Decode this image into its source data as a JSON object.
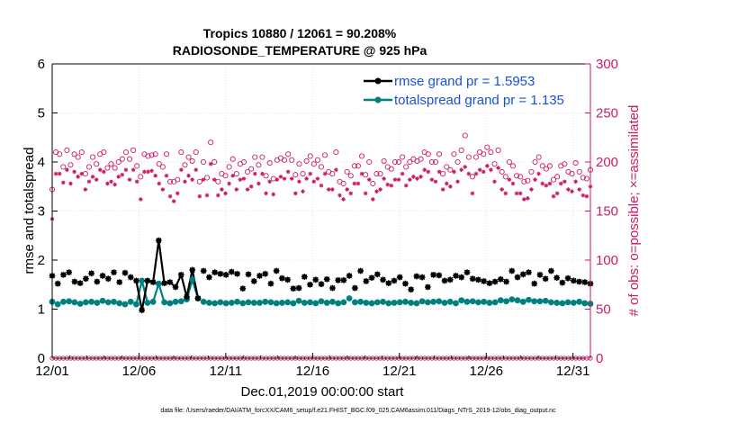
{
  "chart_data": {
    "type": "line",
    "title": "Tropics 10880 / 12061 = 90.208%",
    "subtitle": "RADIOSONDE_TEMPERATURE @ 925 hPa",
    "xlabel": "Dec.01,2019 00:00:00 start",
    "ylabel": "rmse and totalspread",
    "ylabel_right": "# of obs: o=possible; ×=assimilated",
    "footer": "data file: /Users/raeder/DAI/ATM_forcXX/CAM6_setup/f.e21.FHIST_BGC.f09_025.CAM6assim.011/Diags_NTrS_2019-12/obs_diag_output.nc",
    "xlim": [
      0,
      31
    ],
    "ylim": [
      0,
      6
    ],
    "ylim_right": [
      0,
      300
    ],
    "x_ticks": [
      0,
      5,
      10,
      15,
      20,
      25,
      30
    ],
    "x_tick_labels": [
      "12/01",
      "12/06",
      "12/11",
      "12/16",
      "12/21",
      "12/26",
      "12/31"
    ],
    "y_ticks": [
      0,
      1,
      2,
      3,
      4,
      5,
      6
    ],
    "y_ticks_right": [
      0,
      50,
      100,
      150,
      200,
      250,
      300
    ],
    "legend": [
      "rmse grand pr = 1.5953",
      "totalspread grand pr = 1.135"
    ],
    "series": [
      {
        "name": "rmse",
        "color": "#000000",
        "values": [
          1.68,
          1.52,
          1.7,
          1.75,
          1.56,
          1.53,
          1.62,
          1.73,
          1.56,
          1.68,
          1.62,
          1.75,
          1.55,
          1.74,
          1.65,
          1.58,
          0.98,
          1.58,
          1.55,
          2.4,
          1.53,
          1.55,
          1.45,
          1.7,
          1.25,
          1.8,
          1.22,
          1.78,
          1.65,
          1.75,
          1.72,
          1.7,
          1.76,
          1.72,
          1.42,
          1.71,
          1.57,
          1.68,
          1.72,
          1.52,
          1.78,
          1.63,
          1.6,
          1.42,
          1.43,
          1.66,
          1.5,
          1.6,
          1.51,
          1.61,
          1.43,
          1.59,
          1.59,
          1.68,
          1.43,
          1.78,
          1.57,
          1.64,
          1.71,
          1.6,
          1.53,
          1.58,
          1.65,
          1.52,
          1.4,
          1.67,
          1.65,
          1.45,
          1.7,
          1.69,
          1.58,
          1.6,
          1.68,
          1.65,
          1.75,
          1.62,
          1.6,
          1.57,
          1.53,
          1.56,
          1.61,
          1.56,
          1.78,
          1.65,
          1.71,
          1.75,
          1.52,
          1.7,
          1.62,
          1.78,
          1.64,
          1.54,
          1.63,
          1.58,
          1.56,
          1.55,
          1.52
        ]
      },
      {
        "name": "totalspread",
        "color": "#008080",
        "values": [
          1.15,
          1.1,
          1.15,
          1.16,
          1.14,
          1.11,
          1.14,
          1.15,
          1.13,
          1.17,
          1.14,
          1.15,
          1.12,
          1.1,
          1.15,
          1.1,
          1.58,
          1.13,
          1.15,
          1.52,
          1.14,
          1.12,
          1.15,
          1.16,
          1.2,
          1.6,
          1.22,
          1.15,
          1.13,
          1.12,
          1.14,
          1.12,
          1.13,
          1.15,
          1.12,
          1.14,
          1.13,
          1.13,
          1.15,
          1.14,
          1.12,
          1.13,
          1.14,
          1.12,
          1.17,
          1.13,
          1.14,
          1.12,
          1.16,
          1.13,
          1.15,
          1.12,
          1.14,
          1.22,
          1.14,
          1.15,
          1.13,
          1.12,
          1.14,
          1.15,
          1.12,
          1.13,
          1.14,
          1.15,
          1.13,
          1.12,
          1.16,
          1.14,
          1.15,
          1.16,
          1.13,
          1.15,
          1.12,
          1.18,
          1.15,
          1.16,
          1.14,
          1.15,
          1.13,
          1.14,
          1.18,
          1.16,
          1.2,
          1.18,
          1.15,
          1.19,
          1.16,
          1.16,
          1.17,
          1.14,
          1.13,
          1.12,
          1.14,
          1.13,
          1.15,
          1.12,
          1.11
        ]
      },
      {
        "name": "possible_obs",
        "color": "#cc1a66",
        "values": [
          172,
          210,
          208,
          195,
          212,
          197,
          208,
          205,
          210,
          188,
          195,
          205,
          198,
          208,
          210,
          194,
          198,
          194,
          200,
          203,
          210,
          203,
          212,
          196,
          185,
          208,
          206,
          207,
          208,
          198,
          195,
          208,
          180,
          180,
          182,
          210,
          197,
          205,
          201,
          210,
          180,
          200,
          184,
          220,
          200,
          180,
          188,
          186,
          195,
          203,
          188,
          198,
          200,
          190,
          193,
          205,
          197,
          205,
          186,
          199,
          183,
          202,
          204,
          202,
          208,
          202,
          187,
          198,
          188,
          201,
          206,
          198,
          202,
          195,
          207,
          190,
          188,
          210,
          180,
          178,
          190,
          186,
          196,
          196,
          206,
          187,
          200,
          178,
          188,
          188,
          201,
          195,
          193,
          200,
          200,
          205,
          195,
          200,
          203,
          201,
          203,
          210,
          208,
          200,
          200,
          208,
          188,
          195,
          192,
          208,
          200,
          212,
          227,
          205,
          185,
          205,
          210,
          208,
          215,
          210,
          198,
          212,
          190,
          185,
          200,
          196,
          186,
          185,
          180,
          181,
          190,
          200,
          205,
          196,
          193,
          196,
          182,
          185,
          196,
          198,
          190,
          188,
          199,
          190,
          184,
          183,
          192
        ]
      },
      {
        "name": "assimilated_obs",
        "color": "#cc1a66",
        "values": [
          142,
          188,
          188,
          179,
          192,
          178,
          190,
          185,
          188,
          172,
          180,
          185,
          182,
          192,
          190,
          178,
          180,
          177,
          185,
          187,
          192,
          182,
          192,
          180,
          162,
          190,
          190,
          191,
          186,
          178,
          172,
          186,
          165,
          160,
          168,
          192,
          180,
          186,
          182,
          192,
          165,
          182,
          166,
          198,
          182,
          166,
          172,
          168,
          178,
          186,
          172,
          182,
          183,
          172,
          175,
          188,
          178,
          188,
          168,
          180,
          167,
          182,
          185,
          183,
          190,
          183,
          168,
          180,
          170,
          183,
          188,
          180,
          183,
          176,
          188,
          172,
          172,
          192,
          166,
          162,
          172,
          168,
          178,
          178,
          188,
          168,
          182,
          162,
          170,
          172,
          183,
          177,
          176,
          182,
          182,
          188,
          176,
          182,
          185,
          183,
          185,
          192,
          190,
          182,
          180,
          190,
          172,
          178,
          175,
          190,
          180,
          192,
          195,
          188,
          168,
          188,
          192,
          190,
          196,
          192,
          180,
          194,
          172,
          168,
          182,
          178,
          168,
          168,
          162,
          163,
          172,
          182,
          188,
          178,
          176,
          178,
          165,
          168,
          178,
          180,
          172,
          170,
          180,
          172,
          166,
          165,
          175
        ]
      }
    ]
  }
}
